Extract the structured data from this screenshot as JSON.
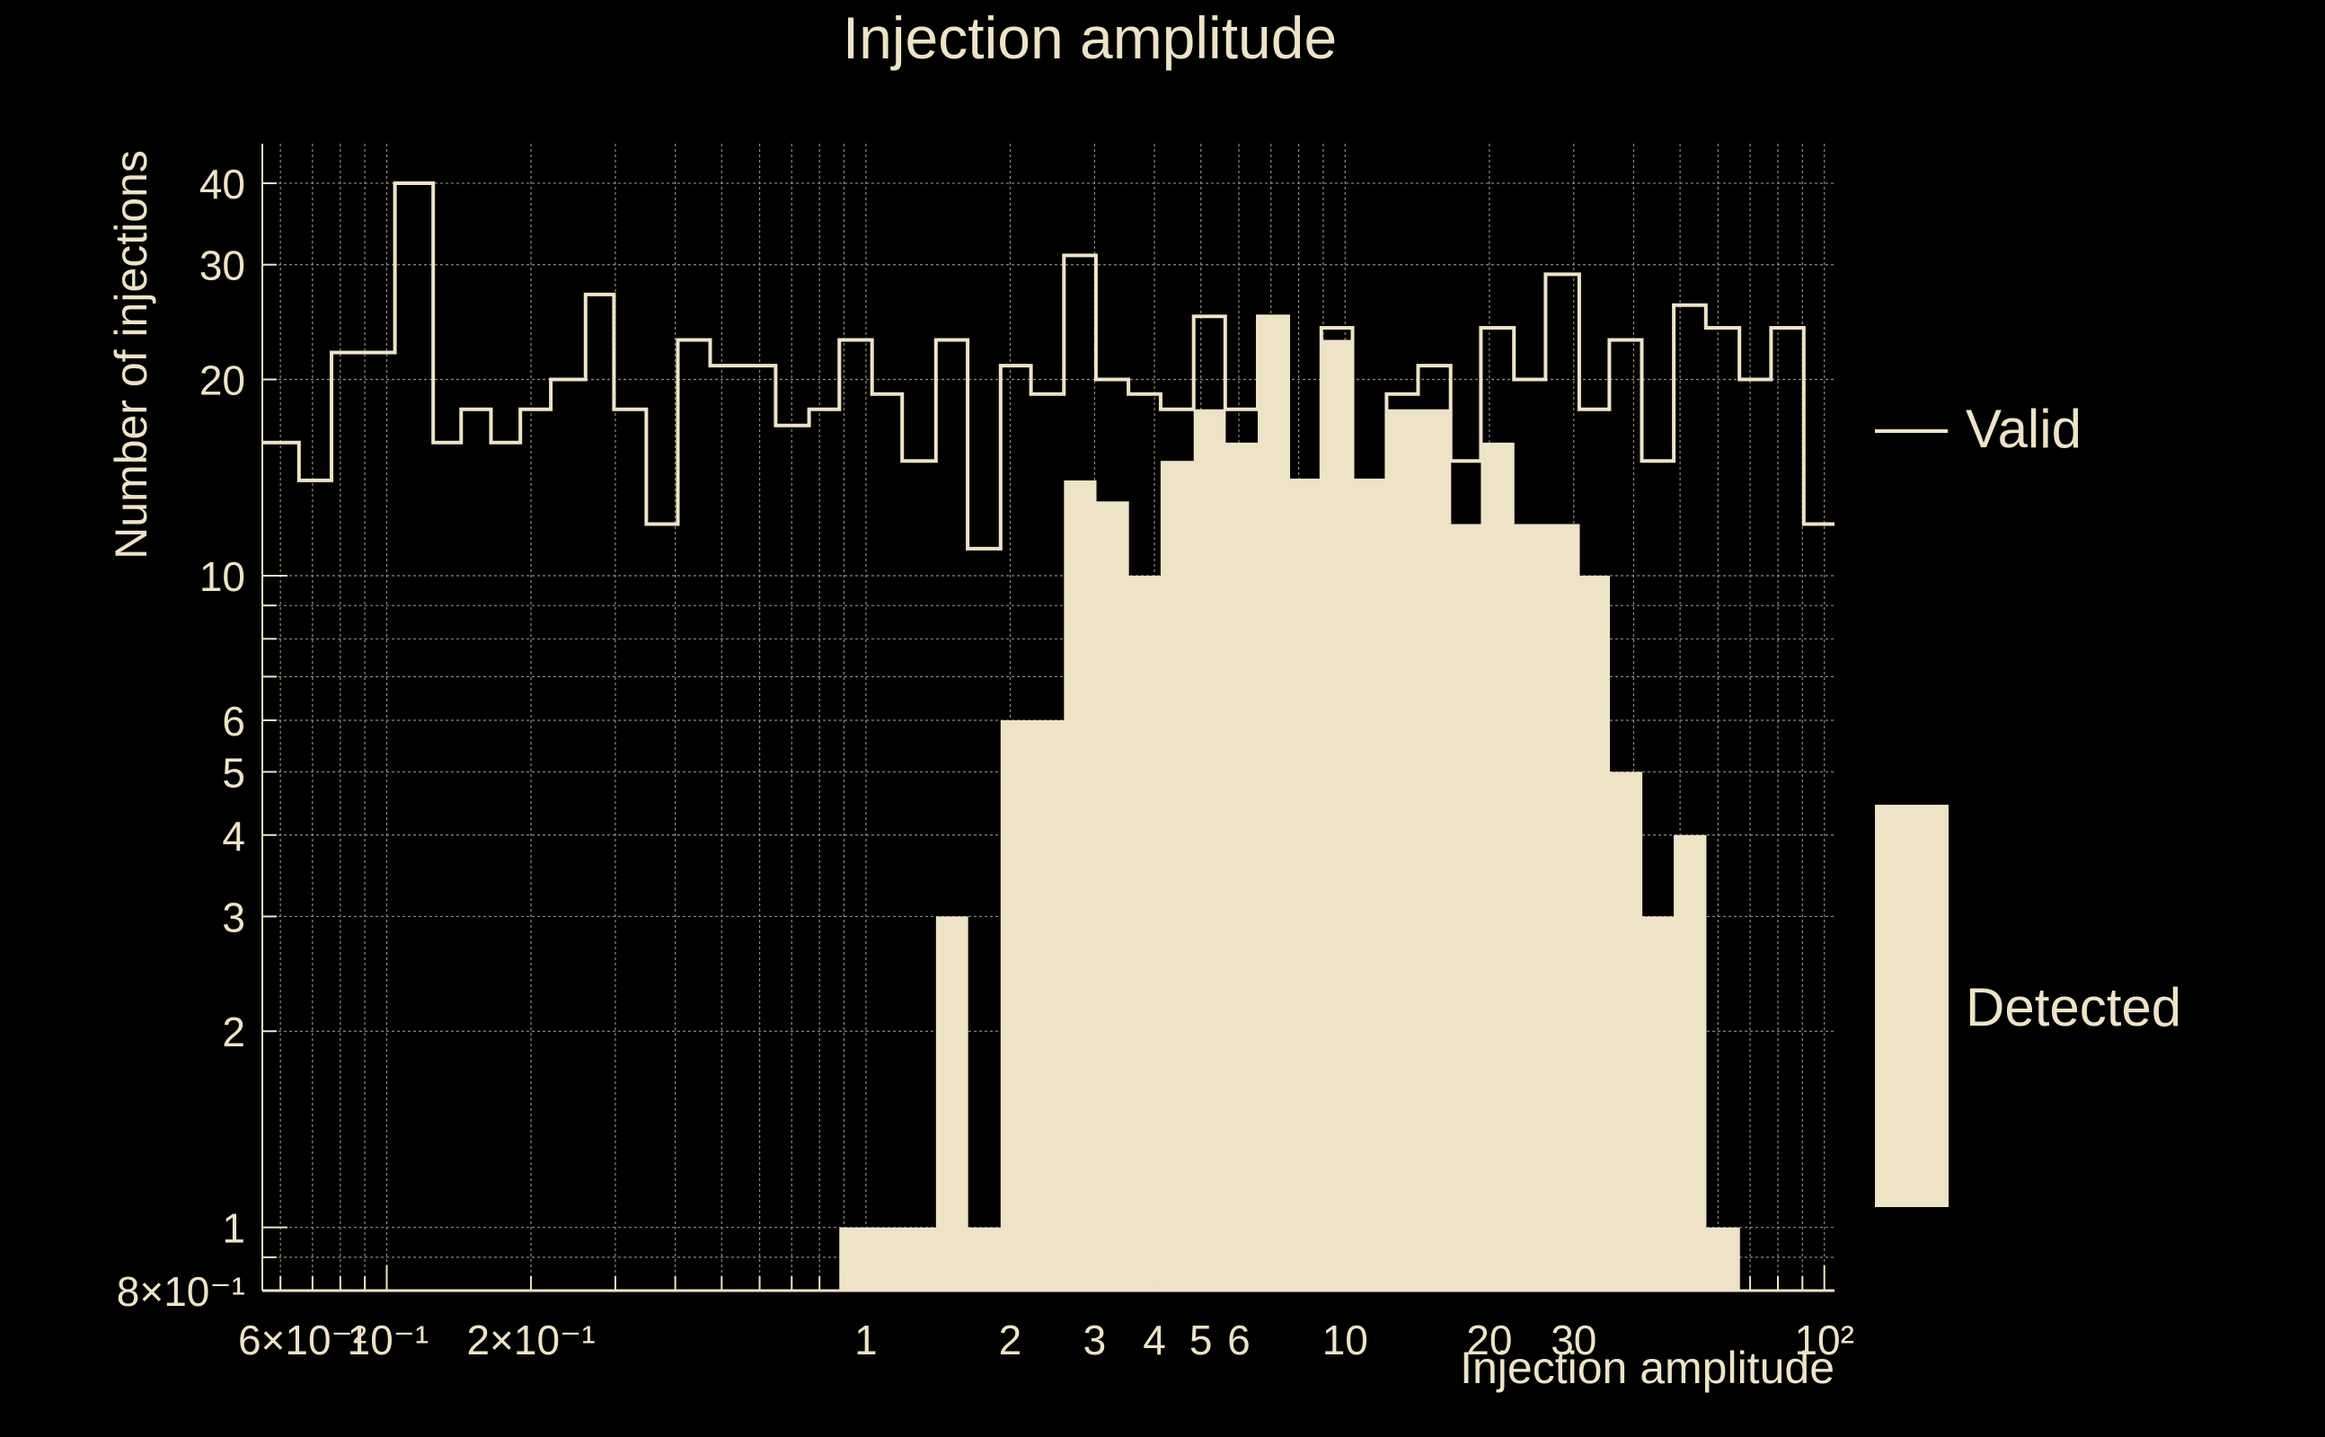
{
  "colors": {
    "background": "#000000",
    "foreground": "#EEE3C6",
    "grid": "#8f8a7c"
  },
  "chart_data": {
    "type": "bar",
    "title": "Injection amplitude",
    "xlabel": "Injection amplitude",
    "ylabel": "Number of injections",
    "xscale": "log",
    "yscale": "log",
    "xlim": [
      0.055,
      105
    ],
    "ylim": [
      0.8,
      46
    ],
    "grid": true,
    "legend_position": "right",
    "x_tick_labels": [
      "6×10⁻²",
      "10⁻¹",
      "2×10⁻¹",
      "1",
      "2",
      "3",
      "4",
      "5",
      "6",
      "10",
      "20",
      "30",
      "10²"
    ],
    "y_tick_labels": [
      "8×10⁻¹",
      "1",
      "2",
      "3",
      "4",
      "5",
      "6",
      "10",
      "20",
      "30",
      "40"
    ],
    "bin_edges": [
      0.055,
      0.0656,
      0.0767,
      0.0916,
      0.104,
      0.125,
      0.143,
      0.165,
      0.19,
      0.22,
      0.26,
      0.298,
      0.348,
      0.405,
      0.473,
      0.557,
      0.648,
      0.761,
      0.88,
      1.03,
      1.19,
      1.4,
      1.63,
      1.91,
      2.21,
      2.59,
      3.02,
      3.53,
      4.12,
      4.83,
      5.62,
      6.57,
      7.61,
      8.92,
      10.36,
      12.2,
      14.2,
      16.6,
      19.2,
      22.5,
      26.2,
      30.8,
      35.6,
      41.6,
      48.5,
      56.6,
      66.5,
      77.4,
      90.6,
      105
    ],
    "series": [
      {
        "name": "Valid",
        "style": "step",
        "values": [
          16,
          14,
          22,
          22,
          40,
          16,
          18,
          16,
          18,
          20,
          27,
          18,
          12,
          23,
          21,
          21,
          17,
          18,
          23,
          19,
          15,
          23,
          11,
          21,
          19,
          31,
          20,
          19,
          18,
          25,
          18,
          25,
          14,
          24,
          14,
          19,
          21,
          15,
          24,
          20,
          29,
          18,
          23,
          15,
          26,
          24,
          20,
          24,
          12
        ]
      },
      {
        "name": "Detected",
        "style": "filled",
        "values": [
          0,
          0,
          0,
          0,
          0,
          0,
          0,
          0,
          0,
          0,
          0,
          0,
          0,
          0,
          0,
          0,
          0,
          0,
          1,
          1,
          1,
          3,
          1,
          6,
          6,
          14,
          13,
          10,
          15,
          18,
          16,
          25,
          14,
          23,
          14,
          18,
          18,
          12,
          16,
          12,
          12,
          10,
          5,
          3,
          4,
          1,
          0,
          0,
          0
        ]
      }
    ]
  }
}
